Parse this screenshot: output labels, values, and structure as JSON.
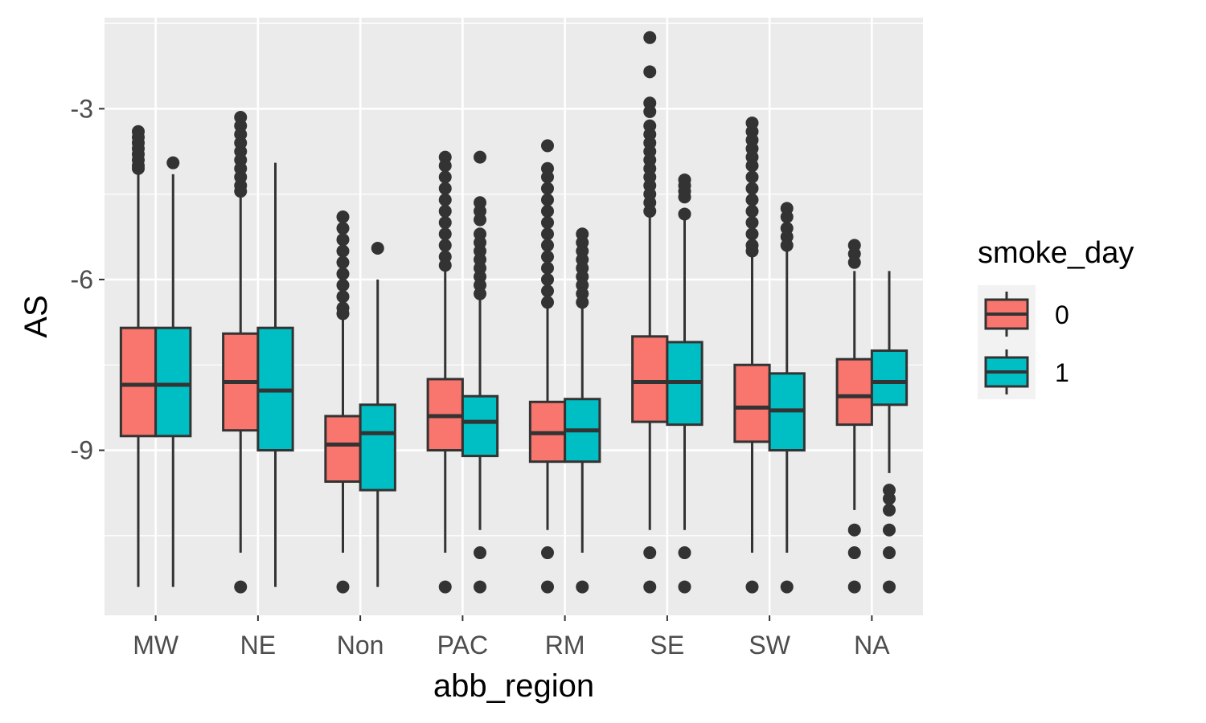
{
  "chart_data": {
    "type": "boxplot",
    "title": "",
    "xlabel": "abb_region",
    "ylabel": "AS",
    "ylim": [
      -11.9,
      -1.4
    ],
    "yticks": [
      -3,
      -6,
      -9
    ],
    "ytick_labels": [
      "-3",
      "-6",
      "-9"
    ],
    "grid": true,
    "categories": [
      "MW",
      "NE",
      "Non",
      "PAC",
      "RM",
      "SE",
      "SW",
      "NA"
    ],
    "legend": {
      "title": "smoke_day",
      "position": "right",
      "entries": [
        {
          "label": "0",
          "color": "#F8766D"
        },
        {
          "label": "1",
          "color": "#00BFC4"
        }
      ]
    },
    "series": [
      {
        "name": "0",
        "color": "#F8766D",
        "boxes": [
          {
            "category": "MW",
            "whisker_low": -11.4,
            "q1": -8.75,
            "median": -7.85,
            "q3": -6.85,
            "whisker_high": -4.1,
            "outliers": [
              -3.4,
              -3.5,
              -3.6,
              -3.7,
              -3.8,
              -3.9,
              -4.0,
              -4.05
            ]
          },
          {
            "category": "NE",
            "whisker_low": -10.8,
            "q1": -8.65,
            "median": -7.8,
            "q3": -6.95,
            "whisker_high": -4.45,
            "outliers": [
              -11.4,
              -3.15,
              -3.3,
              -3.45,
              -3.6,
              -3.75,
              -3.9,
              -4.05,
              -4.2,
              -4.35,
              -4.45
            ]
          },
          {
            "category": "Non",
            "whisker_low": -10.8,
            "q1": -9.55,
            "median": -8.9,
            "q3": -8.4,
            "whisker_high": -6.65,
            "outliers": [
              -11.4,
              -4.9,
              -5.1,
              -5.3,
              -5.5,
              -5.7,
              -5.9,
              -6.1,
              -6.3,
              -6.5,
              -6.6
            ]
          },
          {
            "category": "PAC",
            "whisker_low": -10.8,
            "q1": -9.0,
            "median": -8.4,
            "q3": -7.75,
            "whisker_high": -5.8,
            "outliers": [
              -11.4,
              -3.85,
              -4.0,
              -4.2,
              -4.4,
              -4.6,
              -4.8,
              -5.0,
              -5.2,
              -5.4,
              -5.6,
              -5.75
            ]
          },
          {
            "category": "RM",
            "whisker_low": -10.4,
            "q1": -9.2,
            "median": -8.7,
            "q3": -8.15,
            "whisker_high": -6.45,
            "outliers": [
              -10.8,
              -11.4,
              -3.65,
              -4.05,
              -4.2,
              -4.4,
              -4.6,
              -4.8,
              -5.0,
              -5.2,
              -5.4,
              -5.6,
              -5.8,
              -6.0,
              -6.2,
              -6.4
            ]
          },
          {
            "category": "SE",
            "whisker_low": -10.4,
            "q1": -8.5,
            "median": -7.8,
            "q3": -7.0,
            "whisker_high": -4.9,
            "outliers": [
              -10.8,
              -11.4,
              -1.75,
              -2.35,
              -2.9,
              -3.05,
              -3.3,
              -3.45,
              -3.6,
              -3.75,
              -3.9,
              -4.05,
              -4.2,
              -4.35,
              -4.5,
              -4.65,
              -4.8
            ]
          },
          {
            "category": "SW",
            "whisker_low": -10.8,
            "q1": -8.85,
            "median": -8.25,
            "q3": -7.5,
            "whisker_high": -5.55,
            "outliers": [
              -11.4,
              -3.25,
              -3.4,
              -3.55,
              -3.7,
              -3.85,
              -4.0,
              -4.2,
              -4.4,
              -4.6,
              -4.8,
              -5.0,
              -5.2,
              -5.4,
              -5.5
            ]
          },
          {
            "category": "NA",
            "whisker_low": -10.05,
            "q1": -8.55,
            "median": -8.05,
            "q3": -7.4,
            "whisker_high": -5.85,
            "outliers": [
              -10.4,
              -10.8,
              -11.4,
              -5.4,
              -5.55,
              -5.7
            ]
          }
        ]
      },
      {
        "name": "1",
        "color": "#00BFC4",
        "boxes": [
          {
            "category": "MW",
            "whisker_low": -11.4,
            "q1": -8.75,
            "median": -7.85,
            "q3": -6.85,
            "whisker_high": -4.15,
            "outliers": [
              -3.95
            ]
          },
          {
            "category": "NE",
            "whisker_low": -11.4,
            "q1": -9.0,
            "median": -7.95,
            "q3": -6.85,
            "whisker_high": -3.95,
            "outliers": []
          },
          {
            "category": "Non",
            "whisker_low": -11.4,
            "q1": -9.7,
            "median": -8.7,
            "q3": -8.2,
            "whisker_high": -6.0,
            "outliers": [
              -5.45
            ]
          },
          {
            "category": "PAC",
            "whisker_low": -10.4,
            "q1": -9.1,
            "median": -8.5,
            "q3": -8.05,
            "whisker_high": -6.35,
            "outliers": [
              -10.8,
              -11.4,
              -3.85,
              -4.65,
              -4.8,
              -4.95,
              -5.2,
              -5.35,
              -5.5,
              -5.65,
              -5.8,
              -5.95,
              -6.1,
              -6.25
            ]
          },
          {
            "category": "RM",
            "whisker_low": -10.8,
            "q1": -9.2,
            "median": -8.65,
            "q3": -8.1,
            "whisker_high": -6.45,
            "outliers": [
              -11.4,
              -5.2,
              -5.35,
              -5.5,
              -5.65,
              -5.8,
              -5.95,
              -6.1,
              -6.25,
              -6.4
            ]
          },
          {
            "category": "SE",
            "whisker_low": -10.4,
            "q1": -8.55,
            "median": -7.8,
            "q3": -7.1,
            "whisker_high": -4.85,
            "outliers": [
              -10.8,
              -11.4,
              -4.25,
              -4.35,
              -4.45,
              -4.55,
              -4.85
            ]
          },
          {
            "category": "SW",
            "whisker_low": -10.8,
            "q1": -9.0,
            "median": -8.3,
            "q3": -7.65,
            "whisker_high": -5.45,
            "outliers": [
              -11.4,
              -4.75,
              -4.9,
              -5.1,
              -5.25,
              -5.4
            ]
          },
          {
            "category": "NA",
            "whisker_low": -9.4,
            "q1": -8.2,
            "median": -7.8,
            "q3": -7.25,
            "whisker_high": -5.85,
            "outliers": [
              -9.7,
              -9.85,
              -10.05,
              -10.4,
              -10.8,
              -11.4
            ]
          }
        ]
      }
    ]
  }
}
